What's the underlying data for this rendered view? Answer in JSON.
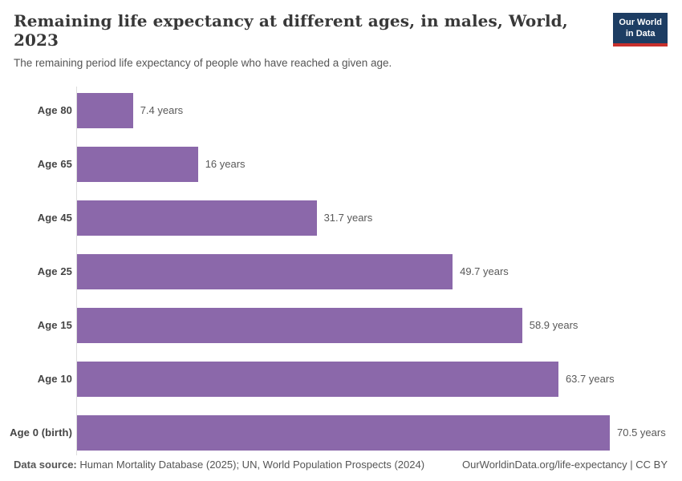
{
  "header": {
    "title": "Remaining life expectancy at different ages, in males, World, 2023",
    "subtitle": "The remaining period life expectancy of people who have reached a given age.",
    "logo": {
      "line1": "Our World",
      "line2": "in Data"
    }
  },
  "chart_data": {
    "type": "bar",
    "orientation": "horizontal",
    "title": "Remaining life expectancy at different ages, in males, World, 2023",
    "categories": [
      "Age 80",
      "Age 65",
      "Age 45",
      "Age 25",
      "Age 15",
      "Age 10",
      "Age 0 (birth)"
    ],
    "values": [
      7.4,
      16,
      31.7,
      49.7,
      58.9,
      63.7,
      70.5
    ],
    "value_labels": [
      "7.4 years",
      "16 years",
      "31.7 years",
      "49.7 years",
      "58.9 years",
      "63.7 years",
      "70.5 years"
    ],
    "unit": "years",
    "xlim": [
      0,
      70.5
    ],
    "grid": false,
    "legend": "none",
    "bar_color": "#8b68aa",
    "axis_color": "#dddddd"
  },
  "footer": {
    "datasource_label": "Data source:",
    "datasource_text": " Human Mortality Database (2025); UN, World Population Prospects (2024)",
    "credit": "OurWorldinData.org/life-expectancy | CC BY"
  }
}
